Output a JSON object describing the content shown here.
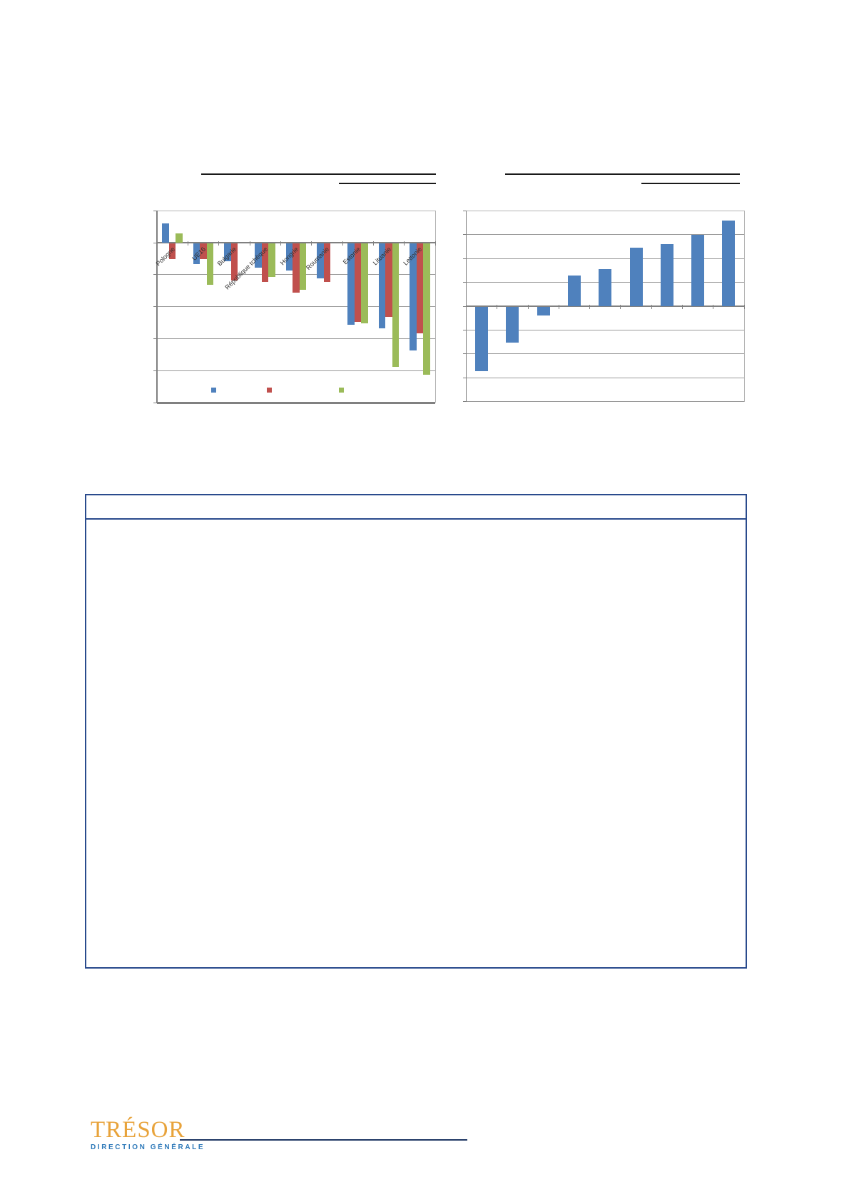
{
  "page": {
    "background": "#ffffff",
    "note": "Document page with two charts, one empty bordered text box, publisher logo. Body text not visible (white/stripped)."
  },
  "colors": {
    "bar_blue": "#4F81BD",
    "bar_red": "#C0504D",
    "bar_green": "#9BBB59",
    "grid_gray": "#9a9a9a",
    "axis_gray": "#808080",
    "frame_gray": "#b3b3b3",
    "box_border_blue": "#2A4B8D",
    "title_underline_black": "#1a1a1a",
    "logo_gold": "#E8A33B",
    "logo_blue": "#2E79B9",
    "rule_navy": "#1F3864"
  },
  "chart_data": [
    {
      "type": "bar",
      "title": "",
      "subtitle": "",
      "title_visible": false,
      "categories": [
        "Pologne",
        "UE16",
        "Bulgarie",
        "République tchèque",
        "Hongrie",
        "Roumanie",
        "Estonie",
        "Lituanie",
        "Lettonie"
      ],
      "series": [
        {
          "name": "série bleue",
          "color": "#4F81BD",
          "values": [
            0.6,
            -0.65,
            -0.55,
            -0.75,
            -0.85,
            -1.1,
            -2.55,
            -2.65,
            -3.35
          ]
        },
        {
          "name": "série rouge",
          "color": "#C0504D",
          "values": [
            -0.5,
            -0.5,
            -1.15,
            -1.2,
            -1.55,
            -1.2,
            -2.45,
            -2.3,
            -2.8
          ]
        },
        {
          "name": "série verte",
          "color": "#9BBB59",
          "values": [
            0.3,
            -1.3,
            null,
            -1.05,
            -1.45,
            null,
            -2.5,
            -3.85,
            -4.1
          ]
        }
      ],
      "ylim": [
        1,
        -5
      ],
      "gridline_step": 1,
      "grid": true,
      "axis_tick_labels_visible": false,
      "legend_position": "bottom",
      "legend_labels_visible": false,
      "note": "Values in gridline units; numeric axis labels and legend text are not rendered in the screenshot."
    },
    {
      "type": "bar",
      "title": "",
      "subtitle": "",
      "title_visible": false,
      "categories": [
        "",
        "",
        "",
        "",
        "",
        "",
        "",
        "",
        ""
      ],
      "series": [
        {
          "name": "série bleue",
          "color": "#4F81BD",
          "values": [
            -2.7,
            -1.5,
            -0.35,
            1.3,
            1.55,
            2.45,
            2.6,
            3.0,
            3.6
          ]
        }
      ],
      "ylim": [
        4,
        -4
      ],
      "gridline_step": 1,
      "grid": true,
      "axis_tick_labels_visible": false,
      "legend_position": "none",
      "note": "Values in gridline units; category and axis labels are not rendered in the screenshot."
    }
  ],
  "boxed_section": {
    "heading_text": "",
    "body_text": "",
    "note": "Empty encadré (text box) with blue border and header divider line; all text stripped/white."
  },
  "logo": {
    "title": "TRÉSOR",
    "subtitle": "DIRECTION GÉNÉRALE"
  }
}
